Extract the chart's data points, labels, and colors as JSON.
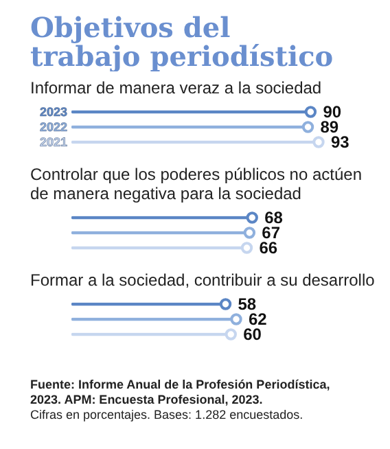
{
  "chart_data": {
    "type": "lollipop",
    "orientation": "horizontal",
    "title": "Objetivos del trabajo periodístico",
    "categories": [
      "Informar de manera veraz a la sociedad",
      "Controlar que los poderes públicos no actúen de manera negativa para la sociedad",
      "Formar a la sociedad, contribuir a su desarrollo"
    ],
    "series": [
      {
        "name": "2023",
        "color": "#5b86c5",
        "values": [
          90,
          68,
          58
        ]
      },
      {
        "name": "2022",
        "color": "#8fb0dd",
        "values": [
          89,
          67,
          62
        ]
      },
      {
        "name": "2021",
        "color": "#c6d6ef",
        "values": [
          93,
          66,
          60
        ]
      }
    ],
    "data_labels": true,
    "legend": false,
    "annotations": [
      "Fuente: Informe Anual de la Profesión Periodística, 2023. APM: Encuesta Profesional, 2023.",
      "Cifras en porcentajes. Bases: 1.282 encuestados."
    ]
  }
}
